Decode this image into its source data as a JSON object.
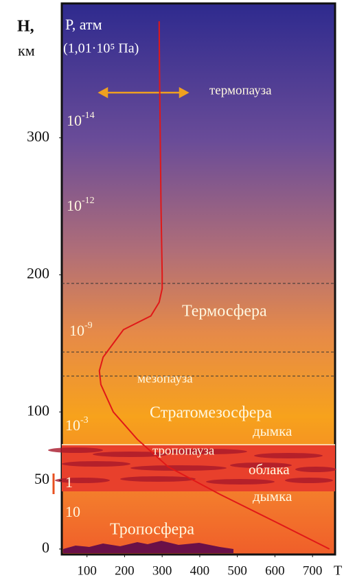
{
  "chart_data": {
    "type": "line",
    "y_label": [
      "H,",
      "км"
    ],
    "pressure_title": [
      "P, атм",
      "(1,01·10⁵ Па)"
    ],
    "x_label": "T",
    "xlim": [
      33,
      760
    ],
    "xticks": [
      100,
      200,
      300,
      400,
      500,
      600,
      700
    ],
    "ylim": [
      -4,
      398
    ],
    "yticks": [
      0,
      50,
      100,
      200,
      300
    ],
    "color": "#e01818",
    "series": [
      {
        "x": [
          745,
          600,
          453,
          316,
          234,
          170,
          137,
          133,
          143,
          170,
          197,
          270,
          292,
          300,
          300,
          297,
          295,
          293,
          292
        ],
        "values": [
          0,
          20,
          40,
          60,
          80,
          100,
          120,
          130,
          140,
          150,
          160,
          170,
          180,
          190,
          200,
          250,
          300,
          350,
          385
        ]
      }
    ],
    "pressure_labels": [
      {
        "text": "10",
        "sup": "-14"
      },
      {
        "text": "10",
        "sup": "-12"
      },
      {
        "text": "10",
        "sup": "-9"
      },
      {
        "text": "10",
        "sup": "-3"
      },
      {
        "text": "1"
      },
      {
        "text": "10"
      }
    ],
    "annotations": [
      "термопауза",
      "Термосфера",
      "мезопауза",
      "Стратомезосфера",
      "дымка",
      "тропопауза",
      "облака",
      "дымка",
      "Тропосфера"
    ]
  }
}
